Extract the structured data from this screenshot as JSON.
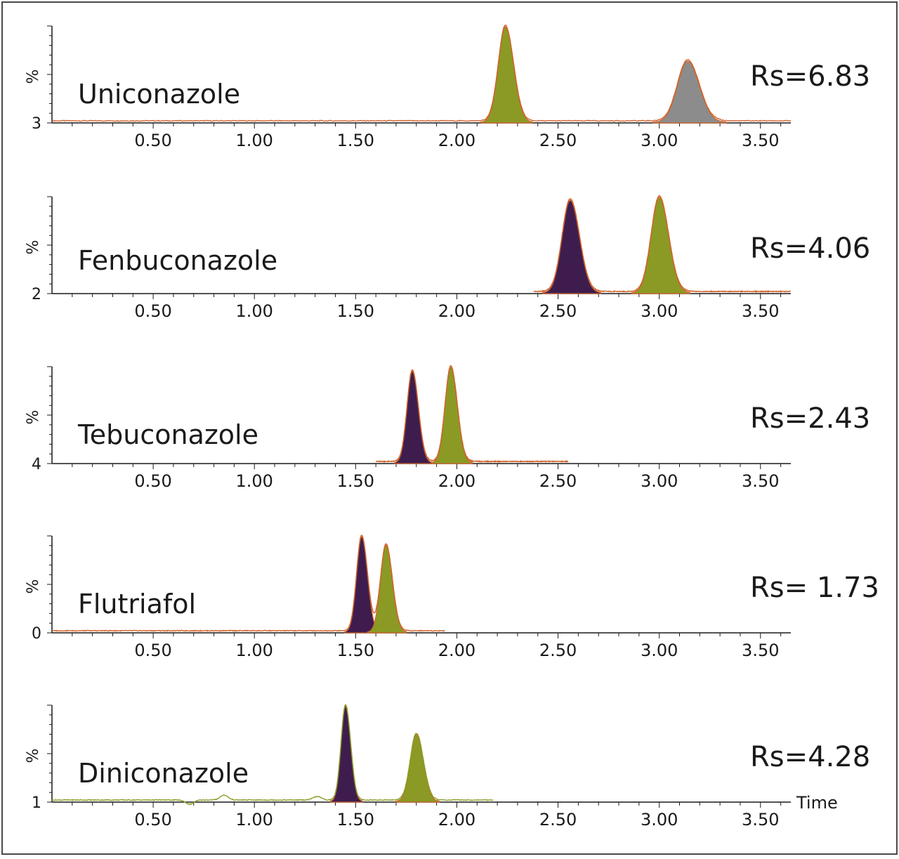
{
  "colors": {
    "frame": "#4a4a4a",
    "axis": "#1a1a1a",
    "trace": "#d0642c",
    "trace_baseline_last": "#8aa02a",
    "peak_olive": "#8a9a24",
    "peak_purple": "#3e1d4e",
    "peak_gray": "#8c8c8c"
  },
  "chart_data": [
    {
      "type": "line",
      "compound": "Uniconazole",
      "resolution": "Rs=6.83",
      "ylabel": "%",
      "y_offset_label": "3",
      "xlim": [
        0,
        3.65
      ],
      "x_ticks": [
        "0.50",
        "1.00",
        "1.50",
        "2.00",
        "2.50",
        "3.00",
        "3.50"
      ],
      "trace_range": [
        0,
        3.65
      ],
      "peaks": [
        {
          "rt": 2.24,
          "height": 1.0,
          "width": 0.035,
          "fill": "olive"
        },
        {
          "rt": 3.14,
          "height": 0.64,
          "width": 0.05,
          "fill": "gray"
        }
      ]
    },
    {
      "type": "line",
      "compound": "Fenbuconazole",
      "resolution": "Rs=4.06",
      "ylabel": "%",
      "y_offset_label": "2",
      "xlim": [
        0,
        3.65
      ],
      "x_ticks": [
        "0.50",
        "1.00",
        "1.50",
        "2.00",
        "2.50",
        "3.00",
        "3.50"
      ],
      "trace_range": [
        2.38,
        3.65
      ],
      "peaks": [
        {
          "rt": 2.56,
          "height": 0.97,
          "width": 0.04,
          "fill": "purple"
        },
        {
          "rt": 3.0,
          "height": 1.0,
          "width": 0.04,
          "fill": "olive"
        }
      ]
    },
    {
      "type": "line",
      "compound": "Tebuconazole",
      "resolution": "Rs=2.43",
      "ylabel": "%",
      "y_offset_label": "4",
      "xlim": [
        0,
        3.65
      ],
      "x_ticks": [
        "0.50",
        "1.00",
        "1.50",
        "2.00",
        "2.50",
        "3.00",
        "3.50"
      ],
      "trace_range": [
        1.6,
        2.55
      ],
      "peaks": [
        {
          "rt": 1.78,
          "height": 0.96,
          "width": 0.026,
          "fill": "purple"
        },
        {
          "rt": 1.97,
          "height": 1.0,
          "width": 0.028,
          "fill": "olive"
        }
      ]
    },
    {
      "type": "line",
      "compound": "Flutriafol",
      "resolution": "Rs= 1.73",
      "ylabel": "%",
      "y_offset_label": "0",
      "xlim": [
        0,
        3.65
      ],
      "x_ticks": [
        "0.50",
        "1.00",
        "1.50",
        "2.00",
        "2.50",
        "3.00",
        "3.50"
      ],
      "trace_range": [
        0,
        1.94
      ],
      "peaks": [
        {
          "rt": 1.53,
          "height": 1.0,
          "width": 0.025,
          "fill": "purple"
        },
        {
          "rt": 1.65,
          "height": 0.91,
          "width": 0.027,
          "fill": "olive"
        }
      ]
    },
    {
      "type": "line",
      "compound": "Diniconazole",
      "resolution": "Rs=4.28",
      "ylabel": "%",
      "y_offset_label": "1",
      "xlabel": "Time",
      "xlim": [
        0,
        3.65
      ],
      "x_ticks": [
        "0.50",
        "1.00",
        "1.50",
        "2.00",
        "2.50",
        "3.00",
        "3.50"
      ],
      "trace_range": [
        0,
        2.18
      ],
      "peaks": [
        {
          "rt": 1.45,
          "height": 1.0,
          "width": 0.022,
          "fill": "purple"
        },
        {
          "rt": 1.8,
          "height": 0.7,
          "width": 0.03,
          "fill": "olive"
        }
      ]
    }
  ]
}
